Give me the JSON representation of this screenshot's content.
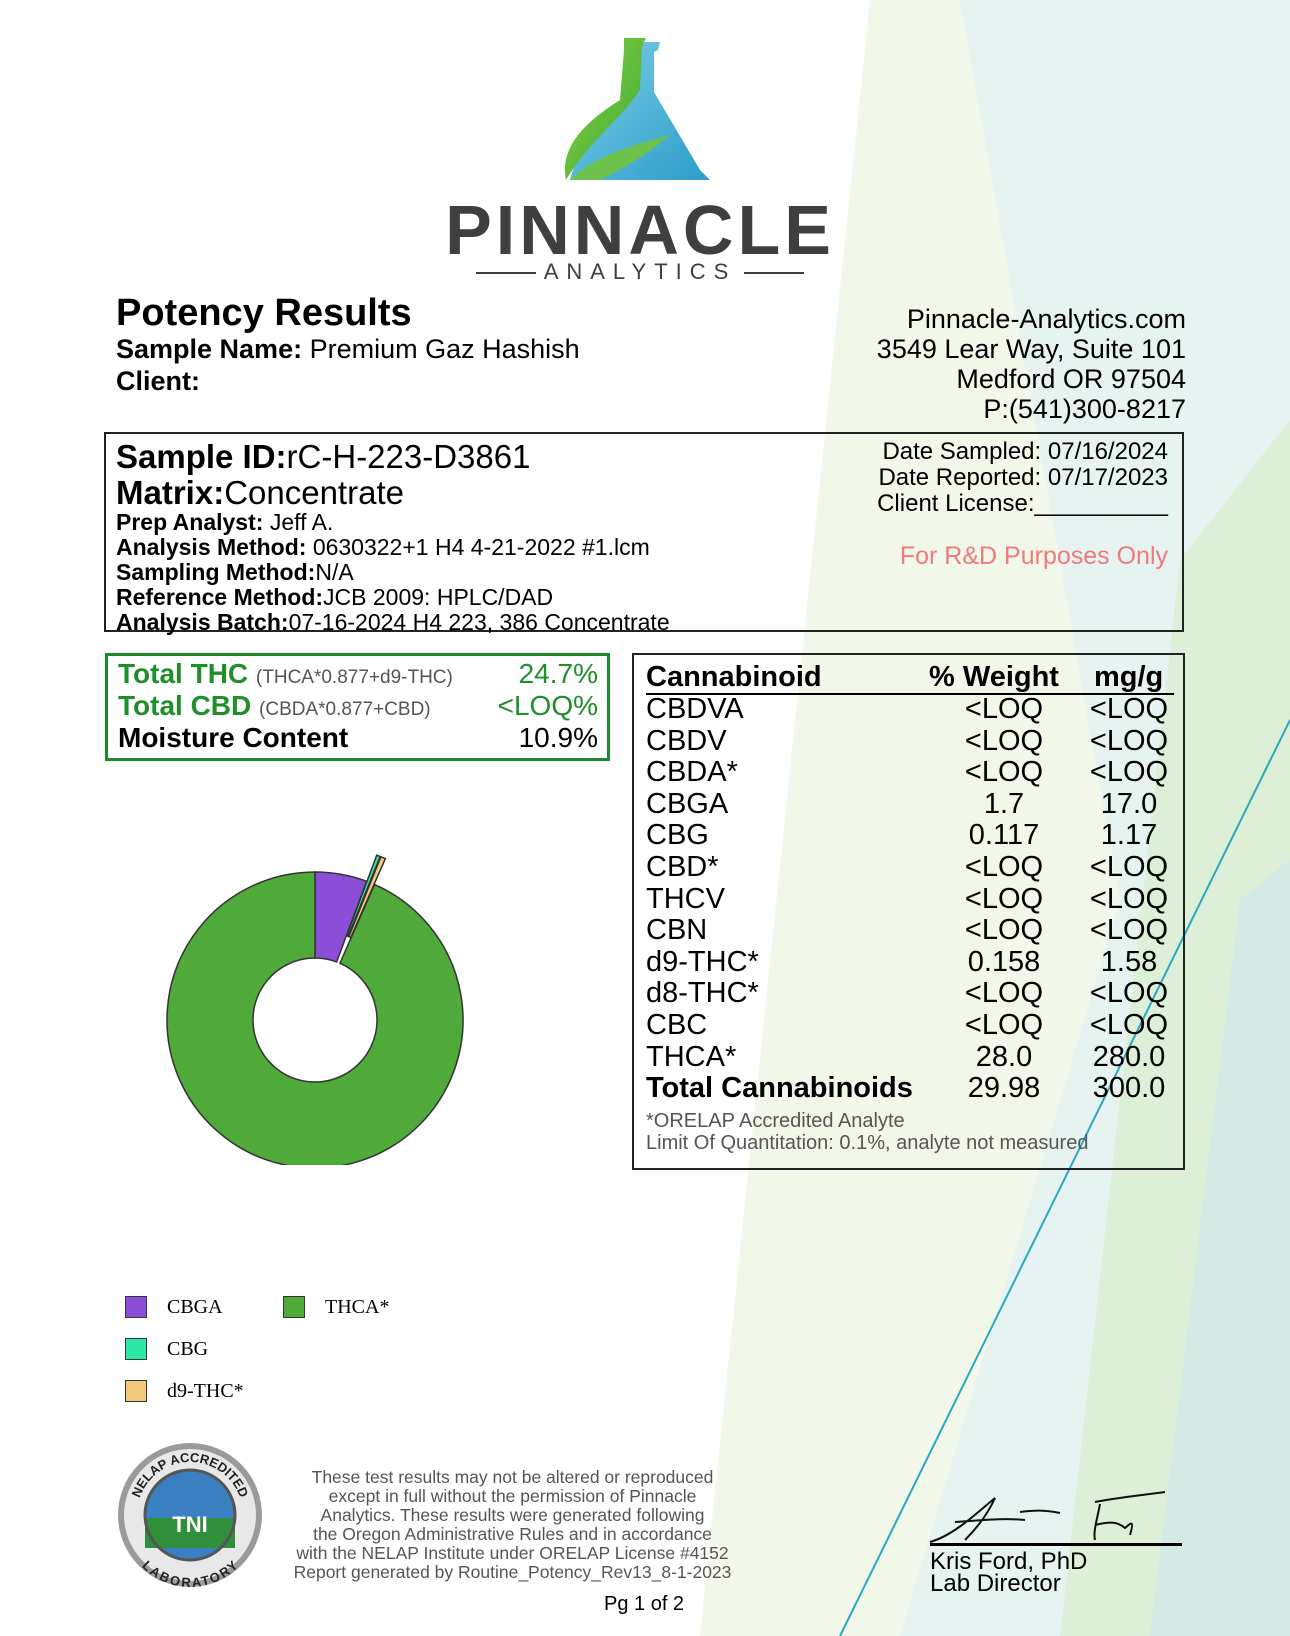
{
  "brand": {
    "name": "PINNACLE",
    "tagline": "ANALYTICS"
  },
  "header": {
    "title": "Potency Results",
    "sample_name_label": "Sample Name:",
    "sample_name": "Premium Gaz Hashish",
    "client_label": "Client:",
    "client_value": ""
  },
  "contact": {
    "website": "Pinnacle-Analytics.com",
    "street": "3549 Lear Way, Suite 101",
    "city": "Medford OR 97504",
    "phone": "P:(541)300-8217"
  },
  "sample": {
    "id_label": "Sample ID:",
    "id": "rC-H-223-D3861",
    "matrix_label": "Matrix:",
    "matrix": "Concentrate",
    "prep_analyst_label": "Prep Analyst:",
    "prep_analyst": "Jeff A.",
    "analysis_method_label": "Analysis Method:",
    "analysis_method": "0630322+1 H4 4-21-2022 #1.lcm",
    "sampling_method_label": "Sampling Method:",
    "sampling_method": "N/A",
    "reference_method_label": "Reference Method:",
    "reference_method": "JCB 2009: HPLC/DAD",
    "analysis_batch_label": "Analysis Batch:",
    "analysis_batch": "07-16-2024 H4 223, 386 Concentrate",
    "date_sampled_label": "Date Sampled:",
    "date_sampled": "07/16/2024",
    "date_reported_label": "Date Reported:",
    "date_reported": "07/17/2023",
    "client_license_label": "Client License:",
    "client_license_blank": "__________",
    "purpose_note": "For R&D Purposes Only"
  },
  "totals": {
    "thc_label": "Total THC",
    "thc_formula": "(THCA*0.877+d9-THC)",
    "thc_value": "24.7%",
    "cbd_label": "Total CBD",
    "cbd_formula": "(CBDA*0.877+CBD)",
    "cbd_value": "<LOQ%",
    "moisture_label": "Moisture Content",
    "moisture_value": "10.9%"
  },
  "cannabinoids": {
    "headers": [
      "Cannabinoid",
      "% Weight",
      "mg/g"
    ],
    "rows": [
      {
        "name": "CBDVA",
        "pct": "<LOQ",
        "mg": "<LOQ"
      },
      {
        "name": "CBDV",
        "pct": "<LOQ",
        "mg": "<LOQ"
      },
      {
        "name": "CBDA*",
        "pct": "<LOQ",
        "mg": "<LOQ"
      },
      {
        "name": "CBGA",
        "pct": "1.7",
        "mg": "17.0"
      },
      {
        "name": "CBG",
        "pct": "0.117",
        "mg": "1.17"
      },
      {
        "name": "CBD*",
        "pct": "<LOQ",
        "mg": "<LOQ"
      },
      {
        "name": "THCV",
        "pct": "<LOQ",
        "mg": "<LOQ"
      },
      {
        "name": "CBN",
        "pct": "<LOQ",
        "mg": "<LOQ"
      },
      {
        "name": "d9-THC*",
        "pct": "0.158",
        "mg": "1.58"
      },
      {
        "name": "d8-THC*",
        "pct": "<LOQ",
        "mg": "<LOQ"
      },
      {
        "name": "CBC",
        "pct": "<LOQ",
        "mg": "<LOQ"
      },
      {
        "name": "THCA*",
        "pct": "28.0",
        "mg": "280.0"
      }
    ],
    "total": {
      "name": "Total Cannabinoids",
      "pct": "29.98",
      "mg": "300.0"
    },
    "note_accredited": "*ORELAP Accredited Analyte",
    "note_loq": "Limit Of Quantitation: 0.1%, analyte not measured"
  },
  "chart_data": {
    "type": "pie",
    "donut": true,
    "start_angle_deg": 0,
    "direction": "clockwise",
    "categories": [
      "CBGA",
      "CBG",
      "d9-THC*",
      "THCA*"
    ],
    "values": [
      1.7,
      0.117,
      0.158,
      28.0
    ],
    "colors": [
      "#8a4fd6",
      "#2ee8a5",
      "#f4c97a",
      "#4faa3a"
    ],
    "exploded": [
      "CBG",
      "d9-THC*"
    ],
    "legend": [
      "CBGA",
      "THCA*",
      "CBG",
      "d9-THC*"
    ],
    "legend_placement": "bottom-left"
  },
  "legend_colors": {
    "CBGA": "#8a4fd6",
    "THCA*": "#4faa3a",
    "CBG": "#2ee8a5",
    "d9-THC*": "#f4c97a"
  },
  "seal": {
    "top_text": "NELAP ACCREDITED",
    "bottom_text": "LABORATORY",
    "center_text": "TNI"
  },
  "footer": {
    "disclaimer_lines": [
      "These test results may not be altered or reproduced",
      "except in full without the permission of Pinnacle",
      "Analytics. These results were generated following",
      "the Oregon Administrative Rules and in accordance",
      "with the NELAP Institute under ORELAP License #4152",
      "Report generated by Routine_Potency_Rev13_8-1-2023"
    ],
    "page": "Pg 1 of 2",
    "signer_name": "Kris Ford, PhD",
    "signer_title": "Lab Director"
  }
}
